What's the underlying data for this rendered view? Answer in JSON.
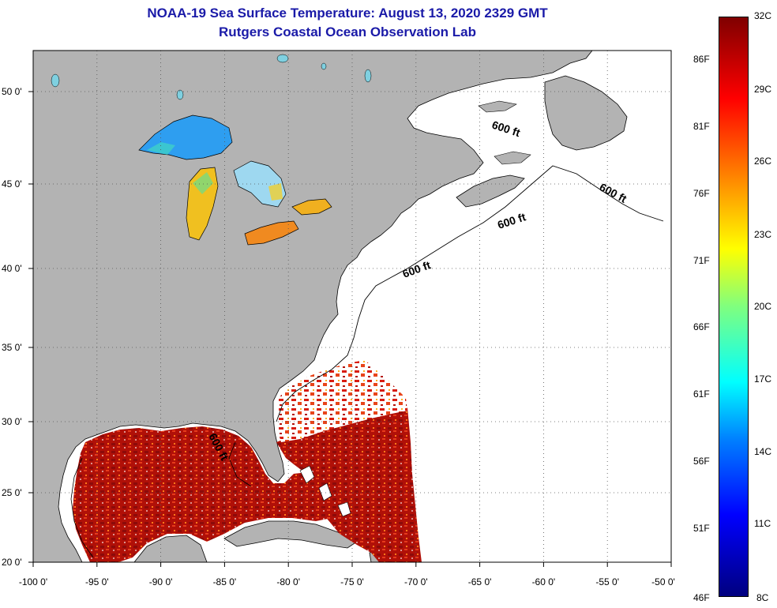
{
  "title": {
    "line1": "NOAA-19 Sea Surface Temperature:  August 13, 2020 2329 GMT",
    "line2": "Rutgers Coastal Ocean Observation Lab"
  },
  "axes": {
    "lon_labels": [
      "-100 0'",
      "-95 0'",
      "-90 0'",
      "-85 0'",
      "-80 0'",
      "-75 0'",
      "-70 0'",
      "-65 0'",
      "-60 0'",
      "-55 0'",
      "-50 0'"
    ],
    "lon_values": [
      -100,
      -95,
      -90,
      -85,
      -80,
      -75,
      -70,
      -65,
      -60,
      -55,
      -50
    ],
    "lat_labels": [
      "50 0'",
      "45 0'",
      "40 0'",
      "35 0'",
      "30 0'",
      "25 0'",
      "20 0'"
    ],
    "lat_values": [
      50,
      45,
      40,
      35,
      30,
      25,
      20
    ]
  },
  "isobath_labels": [
    "600 ft",
    "600 ft",
    "600 ft",
    "600 ft",
    "600 ft"
  ],
  "colorbar": {
    "celsius": [
      "32C",
      "29C",
      "26C",
      "23C",
      "20C",
      "17C",
      "14C",
      "11C",
      "8C"
    ],
    "fahrenheit": [
      "86F",
      "81F",
      "76F",
      "71F",
      "66F",
      "61F",
      "56F",
      "51F",
      "46F"
    ]
  },
  "colors": {
    "land": "#b3b3b3",
    "ocean_nodata": "#ffffff",
    "title": "#1a1aa8",
    "warm": "#c8140a",
    "hot": "#8c0a0a"
  }
}
